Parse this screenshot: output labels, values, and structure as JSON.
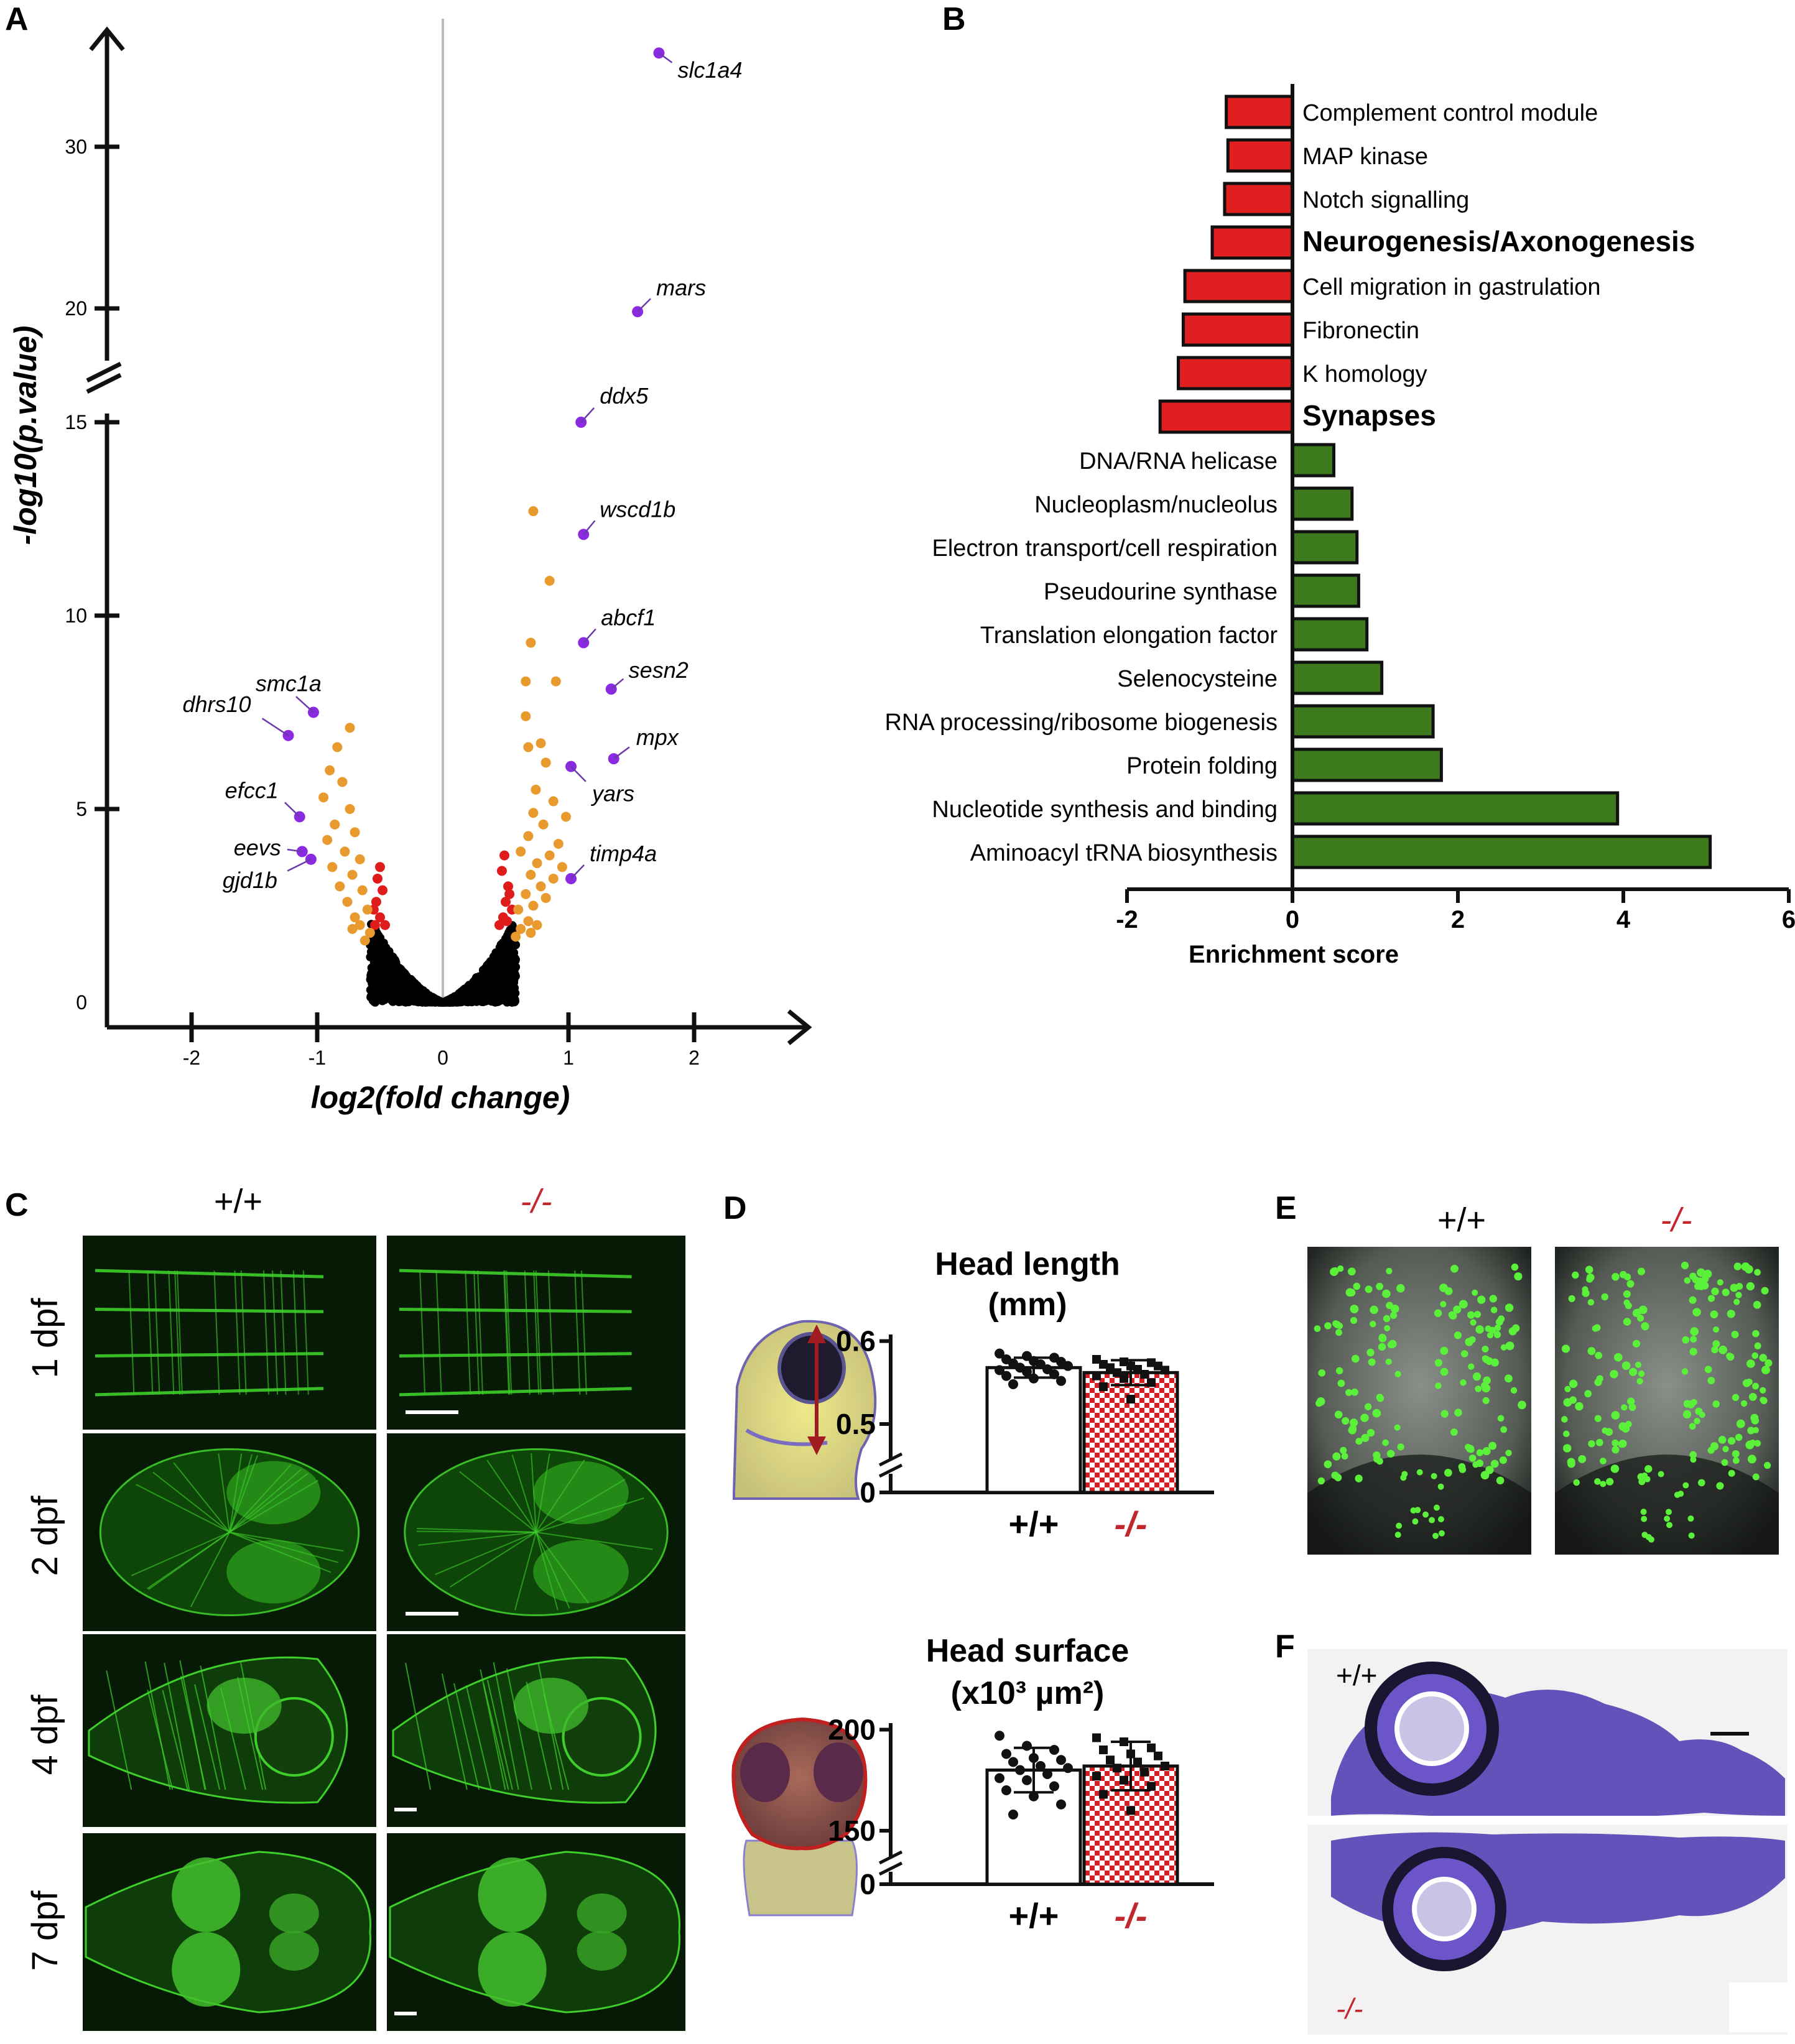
{
  "panels": {
    "A": "A",
    "B": "B",
    "C": "C",
    "D": "D",
    "E": "E",
    "F": "F"
  },
  "colors": {
    "down": "#e02020",
    "up": "#3d7a1e",
    "orange": "#e89a2e",
    "red_dot": "#e01b1b",
    "black_dot": "#000000",
    "purple": "#8a2be2",
    "mutant_text": "#c1272d",
    "gfp": "#3ecf2a"
  },
  "genotypes": {
    "wt": "+/+",
    "mut": "-/-"
  },
  "chart_data": [
    {
      "type": "scatter",
      "panel": "A",
      "xlabel": "log2(fold change)",
      "ylabel": "-log10(p.value)",
      "xticks": [
        "-2",
        "-1",
        "0",
        "1",
        "2"
      ],
      "yticks": [
        "0",
        "5",
        "10",
        "15",
        "20",
        "30"
      ],
      "xlim": [
        -2.7,
        2.9
      ],
      "ylim": [
        0,
        36
      ],
      "axis_break": [
        16,
        18
      ],
      "labeled_points": [
        {
          "label": "slc1a4",
          "x": 1.72,
          "y": 35.8
        },
        {
          "label": "mars",
          "x": 1.55,
          "y": 19.8
        },
        {
          "label": "ddx5",
          "x": 1.1,
          "y": 15.0
        },
        {
          "label": "wscd1b",
          "x": 1.12,
          "y": 12.1
        },
        {
          "label": "abcf1",
          "x": 1.12,
          "y": 9.3
        },
        {
          "label": "sesn2",
          "x": 1.34,
          "y": 8.1
        },
        {
          "label": "mpx",
          "x": 1.36,
          "y": 6.3
        },
        {
          "label": "yars",
          "x": 1.02,
          "y": 6.1
        },
        {
          "label": "timp4a",
          "x": 1.02,
          "y": 3.2
        },
        {
          "label": "smc1a",
          "x": -1.03,
          "y": 7.5
        },
        {
          "label": "dhrs10",
          "x": -1.23,
          "y": 6.9
        },
        {
          "label": "efcc1",
          "x": -1.14,
          "y": 4.8
        },
        {
          "label": "eevs",
          "x": -1.12,
          "y": 3.9
        },
        {
          "label": "gjd1b",
          "x": -1.05,
          "y": 3.7
        }
      ],
      "background_points": {
        "orange_up": [
          [
            0.72,
            12.7
          ],
          [
            0.85,
            10.9
          ],
          [
            0.7,
            9.3
          ],
          [
            0.66,
            8.3
          ],
          [
            0.9,
            8.3
          ],
          [
            0.66,
            7.4
          ],
          [
            0.78,
            6.7
          ],
          [
            0.68,
            6.6
          ],
          [
            0.82,
            6.2
          ],
          [
            0.74,
            5.5
          ],
          [
            0.88,
            5.2
          ],
          [
            0.98,
            4.8
          ],
          [
            0.72,
            4.9
          ],
          [
            0.8,
            4.6
          ],
          [
            0.92,
            4.1
          ],
          [
            0.68,
            4.3
          ],
          [
            0.85,
            3.8
          ],
          [
            0.75,
            3.6
          ],
          [
            0.95,
            3.5
          ],
          [
            0.7,
            3.3
          ],
          [
            0.88,
            3.2
          ],
          [
            0.62,
            3.9
          ],
          [
            0.78,
            3.0
          ],
          [
            0.66,
            2.8
          ],
          [
            0.72,
            2.5
          ],
          [
            0.82,
            2.7
          ],
          [
            0.6,
            2.4
          ],
          [
            0.68,
            2.1
          ],
          [
            0.75,
            2.0
          ],
          [
            0.62,
            1.9
          ],
          [
            0.58,
            1.7
          ],
          [
            0.7,
            1.8
          ]
        ],
        "orange_down": [
          [
            -0.74,
            7.1
          ],
          [
            -0.84,
            6.6
          ],
          [
            -0.9,
            6.0
          ],
          [
            -0.8,
            5.7
          ],
          [
            -0.95,
            5.3
          ],
          [
            -0.74,
            5.0
          ],
          [
            -0.86,
            4.6
          ],
          [
            -0.7,
            4.4
          ],
          [
            -0.92,
            4.2
          ],
          [
            -0.78,
            3.9
          ],
          [
            -0.66,
            3.7
          ],
          [
            -0.88,
            3.5
          ],
          [
            -0.72,
            3.3
          ],
          [
            -0.82,
            3.0
          ],
          [
            -0.64,
            2.9
          ],
          [
            -0.76,
            2.6
          ],
          [
            -0.6,
            2.4
          ],
          [
            -0.7,
            2.2
          ],
          [
            -0.66,
            2.0
          ],
          [
            -0.58,
            1.8
          ],
          [
            -0.62,
            1.6
          ],
          [
            -0.72,
            1.9
          ]
        ],
        "red_up": [
          [
            0.48,
            2.2
          ],
          [
            0.5,
            2.6
          ],
          [
            0.52,
            3.0
          ],
          [
            0.47,
            3.4
          ],
          [
            0.53,
            2.8
          ],
          [
            0.45,
            2.0
          ],
          [
            0.55,
            2.4
          ],
          [
            0.49,
            3.8
          ],
          [
            0.51,
            2.1
          ]
        ],
        "red_down": [
          [
            -0.5,
            2.2
          ],
          [
            -0.53,
            2.6
          ],
          [
            -0.48,
            2.9
          ],
          [
            -0.52,
            3.2
          ],
          [
            -0.55,
            2.4
          ],
          [
            -0.46,
            2.0
          ],
          [
            -0.5,
            3.5
          ],
          [
            -0.54,
            2.0
          ]
        ]
      }
    },
    {
      "type": "bar",
      "panel": "B",
      "xlabel": "Enrichment score",
      "xticks": [
        "-2",
        "0",
        "2",
        "4",
        "6"
      ],
      "xlim": [
        -2,
        6
      ],
      "categories": [
        "Complement control module",
        "MAP kinase",
        "Notch signalling",
        "Neurogenesis/Axonogenesis",
        "Cell migration in gastrulation",
        "Fibronectin",
        "K homology",
        "Synapses",
        "DNA/RNA helicase",
        "Nucleoplasm/nucleolus",
        "Electron transport/cell respiration",
        "Pseudourine synthase",
        "Translation elongation factor",
        "Selenocysteine",
        "RNA processing/ribosome biogenesis",
        "Protein folding",
        "Nucleotide synthesis and binding",
        "Aminoacyl tRNA biosynthesis"
      ],
      "values": [
        -0.8,
        -0.78,
        -0.82,
        -0.97,
        -1.3,
        -1.32,
        -1.38,
        -1.6,
        0.5,
        0.72,
        0.78,
        0.8,
        0.9,
        1.08,
        1.7,
        1.8,
        3.93,
        5.05
      ],
      "bold": [
        false,
        false,
        false,
        true,
        false,
        false,
        false,
        true,
        false,
        false,
        false,
        false,
        false,
        false,
        false,
        false,
        false,
        false
      ]
    },
    {
      "type": "bar",
      "panel": "D",
      "title": "Head length",
      "subtitle": "(mm)",
      "categories": [
        "+/+",
        "-/-"
      ],
      "yticks": [
        "0",
        "0.5",
        "0.6"
      ],
      "ylim": [
        0.47,
        0.605
      ],
      "values": [
        0.568,
        0.562
      ],
      "errors": [
        0.012,
        0.015
      ],
      "points": [
        [
          0.585,
          0.582,
          0.58,
          0.578,
          0.576,
          0.575,
          0.573,
          0.572,
          0.57,
          0.568,
          0.566,
          0.565,
          0.563,
          0.56,
          0.558,
          0.555,
          0.552,
          0.548
        ],
        [
          0.578,
          0.575,
          0.574,
          0.572,
          0.57,
          0.57,
          0.568,
          0.566,
          0.565,
          0.562,
          0.56,
          0.558,
          0.555,
          0.55,
          0.545,
          0.53
        ]
      ]
    },
    {
      "type": "bar",
      "panel": "D",
      "title": "Head surface",
      "subtitle": "(x10³ µm²)",
      "categories": [
        "+/+",
        "-/-"
      ],
      "yticks": [
        "0",
        "150",
        "200"
      ],
      "ylim": [
        142,
        202
      ],
      "values": [
        180,
        182
      ],
      "errors": [
        11,
        12
      ],
      "points": [
        [
          197,
          192,
          190,
          188,
          186,
          185,
          184,
          182,
          181,
          180,
          178,
          176,
          175,
          172,
          170,
          167,
          163,
          158
        ],
        [
          196,
          194,
          191,
          190,
          188,
          187,
          185,
          184,
          182,
          181,
          179,
          177,
          175,
          172,
          168,
          160
        ]
      ]
    }
  ],
  "panelC": {
    "stages": [
      "1 dpf",
      "2 dpf",
      "4 dpf",
      "7 dpf"
    ]
  }
}
